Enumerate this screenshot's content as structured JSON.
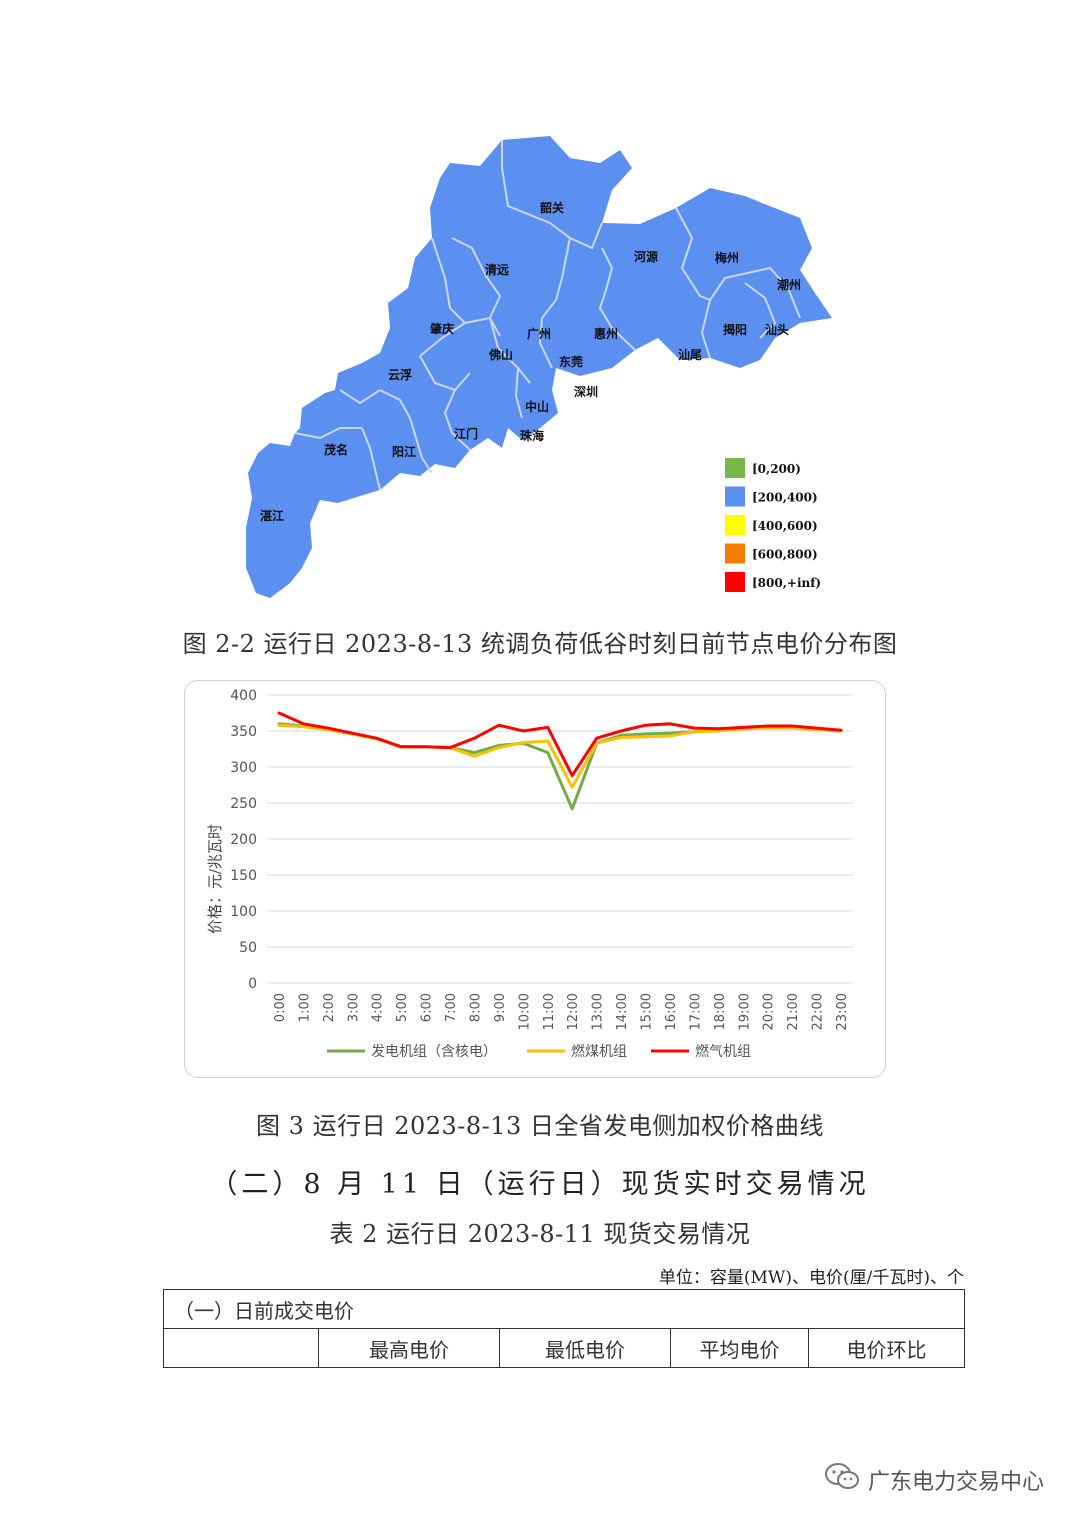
{
  "map": {
    "cities": [
      {
        "id": "shaoguan",
        "name": "韶关"
      },
      {
        "id": "qingyuan",
        "name": "清远"
      },
      {
        "id": "heyuan",
        "name": "河源"
      },
      {
        "id": "meizhou",
        "name": "梅州"
      },
      {
        "id": "chaozhou",
        "name": "潮州"
      },
      {
        "id": "zhaoqing",
        "name": "肇庆"
      },
      {
        "id": "guangzhou",
        "name": "广州"
      },
      {
        "id": "huizhou",
        "name": "惠州"
      },
      {
        "id": "jieyang",
        "name": "揭阳"
      },
      {
        "id": "shantou",
        "name": "汕头"
      },
      {
        "id": "foshan",
        "name": "佛山"
      },
      {
        "id": "dongguan",
        "name": "东莞"
      },
      {
        "id": "shanwei",
        "name": "汕尾"
      },
      {
        "id": "yunfu",
        "name": "云浮"
      },
      {
        "id": "shenzhen",
        "name": "深圳"
      },
      {
        "id": "zhongshan",
        "name": "中山"
      },
      {
        "id": "jiangmen",
        "name": "江门"
      },
      {
        "id": "zhuhai",
        "name": "珠海"
      },
      {
        "id": "maoming",
        "name": "茂名"
      },
      {
        "id": "yangjiang",
        "name": "阳江"
      },
      {
        "id": "zhanjiang",
        "name": "湛江"
      }
    ],
    "fill_color": "#5b8ff0",
    "legend": [
      {
        "label": "[0,200)",
        "color": "#7ab648"
      },
      {
        "label": "[200,400)",
        "color": "#5b8ff0"
      },
      {
        "label": "[400,600)",
        "color": "#ffff00"
      },
      {
        "label": "[600,800)",
        "color": "#f57c00"
      },
      {
        "label": "[800,+inf)",
        "color": "#ff0000"
      }
    ]
  },
  "captions": {
    "fig_map": "图 2-2 运行日 2023-8-13 统调负荷低谷时刻日前节点电价分布图",
    "fig_chart": "图 3 运行日 2023-8-13 日全省发电侧加权价格曲线"
  },
  "chart_data": {
    "type": "line",
    "title": "",
    "xlabel": "",
    "ylabel": "价格：元/兆瓦时",
    "ylim": [
      0,
      400
    ],
    "yticks": [
      0,
      50,
      100,
      150,
      200,
      250,
      300,
      350,
      400
    ],
    "grid": true,
    "legend_position": "bottom",
    "x": [
      "0:00",
      "1:00",
      "2:00",
      "3:00",
      "4:00",
      "5:00",
      "6:00",
      "7:00",
      "8:00",
      "9:00",
      "10:00",
      "11:00",
      "12:00",
      "13:00",
      "14:00",
      "15:00",
      "16:00",
      "17:00",
      "18:00",
      "19:00",
      "20:00",
      "21:00",
      "22:00",
      "23:00"
    ],
    "series": [
      {
        "name": "发电机组（含核电）",
        "color": "#70ad47",
        "values": [
          360,
          357,
          352,
          346,
          339,
          328,
          328,
          327,
          320,
          330,
          333,
          320,
          242,
          333,
          344,
          346,
          347,
          349,
          351,
          353,
          355,
          356,
          353,
          351
        ]
      },
      {
        "name": "燃煤机组",
        "color": "#ffc000",
        "values": [
          358,
          356,
          352,
          346,
          339,
          328,
          328,
          327,
          315,
          327,
          334,
          336,
          272,
          333,
          341,
          342,
          343,
          349,
          350,
          353,
          354,
          354,
          352,
          350
        ]
      },
      {
        "name": "燃气机组",
        "color": "#ff0000",
        "values": [
          375,
          360,
          354,
          347,
          340,
          328,
          328,
          327,
          340,
          358,
          350,
          355,
          288,
          340,
          350,
          358,
          360,
          354,
          353,
          355,
          357,
          357,
          354,
          351
        ]
      }
    ]
  },
  "section": {
    "heading": "（二）8 月 11 日（运行日）现货实时交易情况",
    "table_title": "表 2 运行日 2023-8-11 现货交易情况",
    "unit": "单位：容量(MW)、电价(厘/千瓦时)、个"
  },
  "table": {
    "section_label": "（一）日前成交电价",
    "headers": [
      "",
      "最高电价",
      "最低电价",
      "平均电价",
      "电价环比"
    ]
  },
  "watermark": {
    "text": "广东电力交易中心",
    "icon": "wechat-icon"
  }
}
